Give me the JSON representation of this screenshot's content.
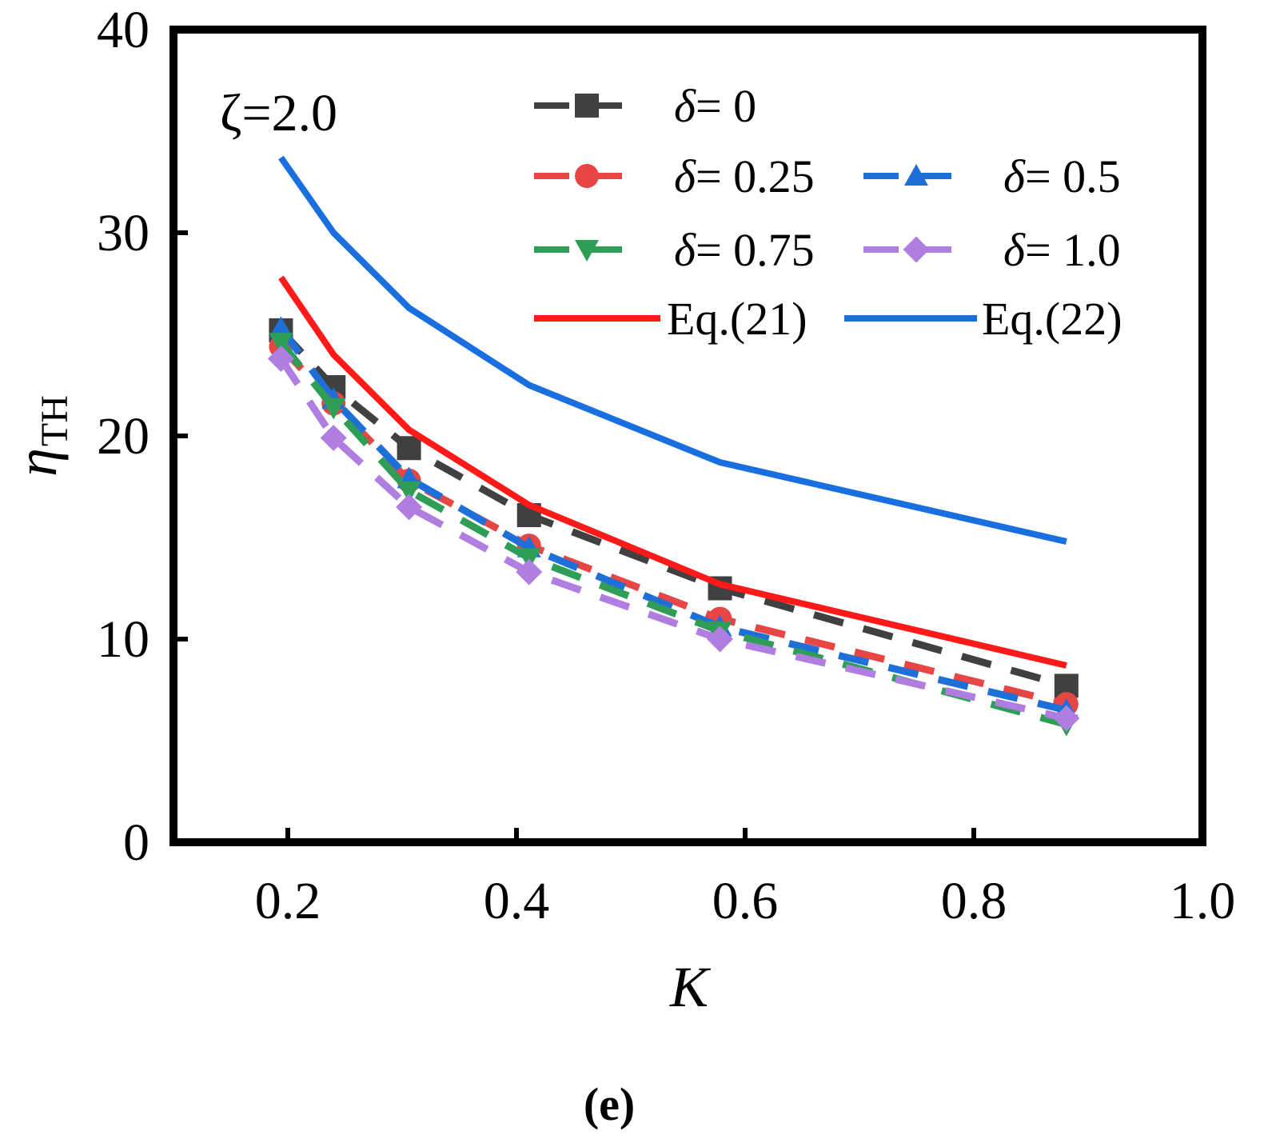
{
  "chart_data": {
    "type": "line",
    "title": "",
    "caption": "(e)",
    "annotation": "ζ=2.0",
    "xlabel": "K",
    "ylabel": "η",
    "ylabel_sub": "TH",
    "xlim": [
      0.1,
      1.0
    ],
    "ylim": [
      0,
      40
    ],
    "x_ticks": [
      0.2,
      0.4,
      0.6,
      0.8,
      1.0
    ],
    "x_tick_labels": [
      "0.2",
      "0.4",
      "0.6",
      "0.8",
      "1.0"
    ],
    "y_ticks": [
      0,
      10,
      20,
      30,
      40
    ],
    "y_tick_labels": [
      "0",
      "10",
      "20",
      "30",
      "40"
    ],
    "legend_position": "top-right",
    "grid": false,
    "series": [
      {
        "name": "δ= 0",
        "symbol": "δ",
        "label_value": "= 0",
        "color": "#404040",
        "marker": "square",
        "style": "dashed",
        "x": [
          0.194,
          0.24,
          0.306,
          0.411,
          0.578,
          0.881
        ],
        "y": [
          25.2,
          22.4,
          19.4,
          16.1,
          12.5,
          7.7
        ]
      },
      {
        "name": "δ= 0.25",
        "symbol": "δ",
        "label_value": "= 0.25",
        "color": "#e84545",
        "marker": "circle",
        "style": "dashed",
        "x": [
          0.194,
          0.24,
          0.306,
          0.411,
          0.578,
          0.881
        ],
        "y": [
          24.4,
          21.6,
          17.8,
          14.6,
          11.0,
          6.8
        ]
      },
      {
        "name": "δ= 0.5",
        "symbol": "δ",
        "label_value": "= 0.5",
        "color": "#1f6fd9",
        "marker": "triangle-up",
        "style": "dashed",
        "x": [
          0.194,
          0.24,
          0.306,
          0.411,
          0.578,
          0.881
        ],
        "y": [
          25.3,
          21.8,
          17.9,
          14.5,
          10.6,
          6.5
        ]
      },
      {
        "name": "δ= 0.75",
        "symbol": "δ",
        "label_value": "= 0.75",
        "color": "#2e9e56",
        "marker": "triangle-down",
        "style": "dashed",
        "x": [
          0.194,
          0.24,
          0.306,
          0.411,
          0.578,
          0.881
        ],
        "y": [
          24.6,
          21.4,
          17.3,
          14.0,
          10.4,
          5.8
        ]
      },
      {
        "name": "δ= 1.0",
        "symbol": "δ",
        "label_value": "= 1.0",
        "color": "#b07ee0",
        "marker": "diamond",
        "style": "dashed",
        "x": [
          0.194,
          0.24,
          0.306,
          0.411,
          0.578,
          0.881
        ],
        "y": [
          23.8,
          19.9,
          16.5,
          13.3,
          10.0,
          6.1
        ]
      },
      {
        "name": "Eq.(21)",
        "color": "#ff1a1a",
        "marker": "none",
        "style": "solid",
        "x": [
          0.194,
          0.24,
          0.306,
          0.411,
          0.578,
          0.881
        ],
        "y": [
          27.8,
          24.0,
          20.3,
          16.6,
          12.7,
          8.7
        ]
      },
      {
        "name": "Eq.(22)",
        "color": "#1a6fe0",
        "marker": "none",
        "style": "solid",
        "x": [
          0.194,
          0.24,
          0.306,
          0.411,
          0.578,
          0.881
        ],
        "y": [
          33.7,
          30.0,
          26.3,
          22.5,
          18.7,
          14.8
        ]
      }
    ]
  }
}
